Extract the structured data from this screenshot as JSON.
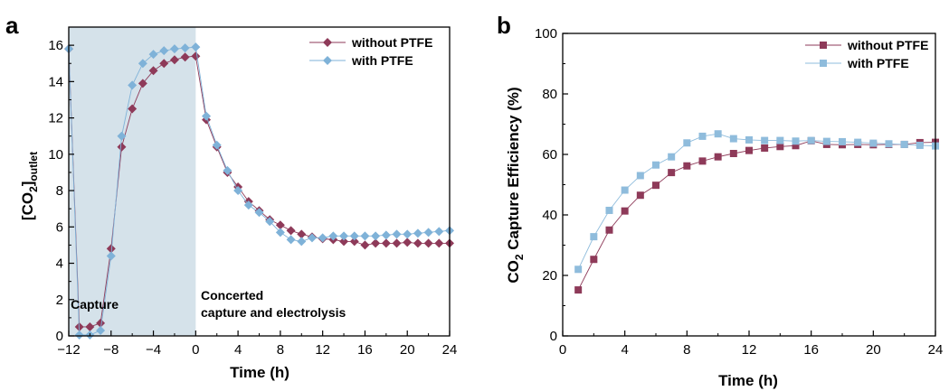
{
  "chart_data": [
    {
      "panel": "a",
      "type": "line",
      "xlabel": "Time (h)",
      "ylabel": "[CO2]outlet",
      "ylabel_main": "[CO",
      "ylabel_sub2": "2",
      "ylabel_close": "]",
      "ylabel_sub": "outlet",
      "xlim": [
        -12,
        24
      ],
      "ylim": [
        0,
        17
      ],
      "xticks": [
        -12,
        -8,
        -4,
        0,
        4,
        8,
        12,
        16,
        20,
        24
      ],
      "xtick_labels": [
        "−12",
        "−8",
        "−4",
        "0",
        "4",
        "8",
        "12",
        "16",
        "20",
        "24"
      ],
      "yticks": [
        0,
        2,
        4,
        6,
        8,
        10,
        12,
        14,
        16
      ],
      "shaded_region": {
        "from": -12,
        "to": 0,
        "color": "#d5e2ea"
      },
      "annotations": {
        "capture": "Capture",
        "concerted_line1": "Concerted",
        "concerted_line2": "capture and electrolysis"
      },
      "legend_position": "top-right",
      "series": [
        {
          "name": "without PTFE",
          "marker": "diamond",
          "color": "#8e3a59",
          "x": [
            -12,
            -11,
            -10,
            -9,
            -8,
            -7,
            -6,
            -5,
            -4,
            -3,
            -2,
            -1,
            0,
            1,
            2,
            3,
            4,
            5,
            6,
            7,
            8,
            9,
            10,
            11,
            12,
            13,
            14,
            15,
            16,
            17,
            18,
            19,
            20,
            21,
            22,
            23,
            24
          ],
          "y": [
            15.8,
            0.5,
            0.5,
            0.7,
            4.8,
            10.4,
            12.5,
            13.9,
            14.6,
            15.0,
            15.2,
            15.35,
            15.4,
            11.9,
            10.4,
            9.0,
            8.2,
            7.4,
            6.9,
            6.4,
            6.1,
            5.8,
            5.6,
            5.45,
            5.35,
            5.3,
            5.2,
            5.2,
            5.0,
            5.1,
            5.1,
            5.1,
            5.15,
            5.1,
            5.1,
            5.1,
            5.1
          ]
        },
        {
          "name": "with PTFE",
          "marker": "diamond",
          "color": "#7fb2d8",
          "x": [
            -12,
            -11,
            -10,
            -9,
            -8,
            -7,
            -6,
            -5,
            -4,
            -3,
            -2,
            -1,
            0,
            1,
            2,
            3,
            4,
            5,
            6,
            7,
            8,
            9,
            10,
            11,
            12,
            13,
            14,
            15,
            16,
            17,
            18,
            19,
            20,
            21,
            22,
            23,
            24
          ],
          "y": [
            15.8,
            0.05,
            0.05,
            0.3,
            4.4,
            11.0,
            13.8,
            15.0,
            15.5,
            15.7,
            15.8,
            15.85,
            15.9,
            12.1,
            10.5,
            9.1,
            8.0,
            7.2,
            6.8,
            6.3,
            5.7,
            5.3,
            5.2,
            5.4,
            5.4,
            5.5,
            5.5,
            5.5,
            5.5,
            5.5,
            5.55,
            5.6,
            5.6,
            5.65,
            5.7,
            5.75,
            5.8
          ]
        }
      ]
    },
    {
      "panel": "b",
      "type": "line",
      "xlabel": "Time (h)",
      "ylabel": "CO2 Capture Efficiency (%)",
      "ylabel_main": "CO",
      "ylabel_sub": "2",
      "ylabel_rest": " Capture Efficiency (%)",
      "xlim": [
        0,
        24
      ],
      "ylim": [
        0,
        100
      ],
      "xticks": [
        0,
        4,
        8,
        12,
        16,
        20,
        24
      ],
      "yticks": [
        0,
        20,
        40,
        60,
        80,
        100
      ],
      "legend_position": "top-right",
      "series": [
        {
          "name": "without PTFE",
          "marker": "square",
          "color": "#8e3a59",
          "x": [
            1,
            2,
            3,
            4,
            5,
            6,
            7,
            8,
            9,
            10,
            11,
            12,
            13,
            14,
            15,
            16,
            17,
            18,
            19,
            20,
            21,
            22,
            23,
            24
          ],
          "y": [
            15.2,
            25.3,
            35.0,
            41.3,
            46.5,
            49.8,
            54.0,
            56.2,
            57.8,
            59.2,
            60.3,
            61.3,
            62.1,
            62.6,
            62.9,
            64.5,
            63.3,
            63.2,
            63.3,
            63.2,
            63.3,
            63.3,
            63.9,
            64.0
          ]
        },
        {
          "name": "with PTFE",
          "marker": "square",
          "color": "#8fbcdc",
          "x": [
            1,
            2,
            3,
            4,
            5,
            6,
            7,
            8,
            9,
            10,
            11,
            12,
            13,
            14,
            15,
            16,
            17,
            18,
            19,
            20,
            21,
            22,
            23,
            24
          ],
          "y": [
            22.0,
            32.8,
            41.5,
            48.2,
            53.0,
            56.5,
            59.2,
            63.8,
            66.0,
            66.8,
            65.2,
            64.8,
            64.6,
            64.6,
            64.4,
            64.6,
            64.3,
            64.2,
            64.0,
            63.7,
            63.5,
            63.3,
            63.0,
            62.8
          ]
        }
      ]
    }
  ]
}
